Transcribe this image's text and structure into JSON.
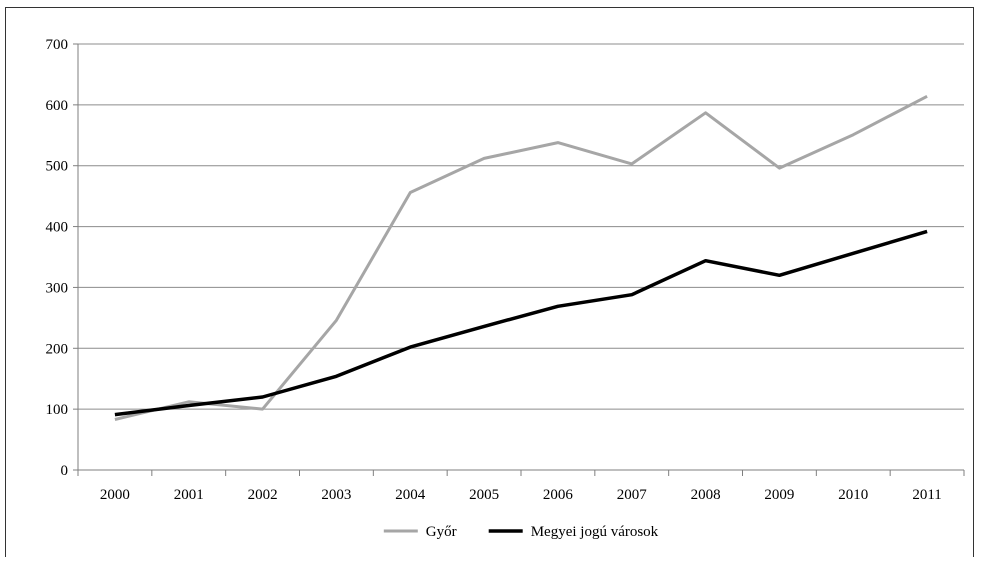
{
  "chart_data": {
    "type": "line",
    "title": "",
    "xlabel": "",
    "ylabel": "",
    "categories": [
      "2000",
      "2001",
      "2002",
      "2003",
      "2004",
      "2005",
      "2006",
      "2007",
      "2008",
      "2009",
      "2010",
      "2011"
    ],
    "ylim": [
      0,
      700
    ],
    "yticks": [
      "0",
      "100",
      "200",
      "300",
      "400",
      "500",
      "600",
      "700"
    ],
    "grid": true,
    "legend_position": "bottom",
    "series": [
      {
        "name": "Győr",
        "color": "#a6a6a6",
        "values": [
          83,
          112,
          100,
          246,
          456,
          512,
          538,
          503,
          587,
          496,
          551,
          614
        ]
      },
      {
        "name": "Megyei jogú városok",
        "color": "#000000",
        "values": [
          91,
          106,
          120,
          154,
          202,
          236,
          269,
          288,
          344,
          320,
          356,
          392
        ]
      }
    ]
  }
}
